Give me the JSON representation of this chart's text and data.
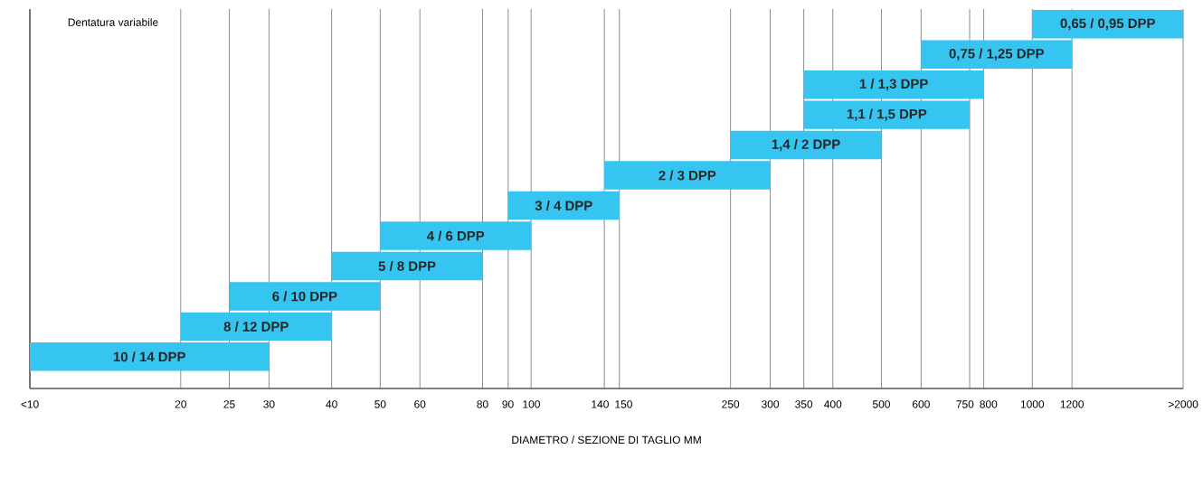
{
  "chart_data": {
    "type": "bar",
    "orientation": "horizontal",
    "title": "Dentatura variabile",
    "xlabel": "DIAMETRO / SEZIONE DI TAGLIO MM",
    "categories": [
      "0,65 / 0,95 DPP",
      "0,75 / 1,25 DPP",
      "1 / 1,3 DPP",
      "1,1 / 1,5 DPP",
      "1,4 / 2 DPP",
      "2 / 3 DPP",
      "3 / 4 DPP",
      "4 / 6 DPP",
      "5 / 8 DPP",
      "6 / 10 DPP",
      "8 / 12 DPP",
      "10 / 14 DPP"
    ],
    "base": [
      1000,
      600,
      350,
      350,
      250,
      140,
      90,
      50,
      40,
      25,
      20,
      10
    ],
    "values": [
      1000,
      600,
      450,
      400,
      250,
      160,
      60,
      50,
      40,
      25,
      20,
      20
    ],
    "color": "#35c5f0",
    "log": "x",
    "xlim": [
      10,
      2000
    ],
    "xticks": [
      {
        "value": 10,
        "label": "<10"
      },
      20,
      25,
      30,
      40,
      50,
      60,
      80,
      90,
      100,
      140,
      150,
      250,
      300,
      350,
      400,
      500,
      600,
      750,
      800,
      1000,
      1200,
      {
        "value": 2000,
        "label": ">2000"
      }
    ],
    "grid": "x"
  }
}
